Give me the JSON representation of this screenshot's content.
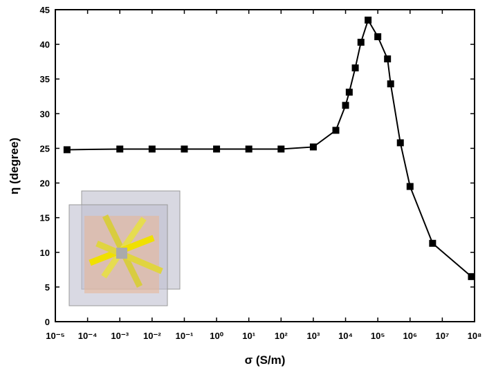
{
  "chart_data": {
    "type": "line",
    "x_label": "σ (S/m)",
    "y_label": "η (degree)",
    "xscale": "log",
    "color": "#000000",
    "x": [
      2.3e-05,
      0.001,
      0.01,
      0.1,
      1,
      10,
      100,
      1000,
      5000,
      10000,
      13000,
      20000,
      30000,
      50000,
      100000,
      200000,
      250000,
      500000,
      1000000,
      5000000,
      80000000
    ],
    "values": [
      24.8,
      24.9,
      24.9,
      24.9,
      24.9,
      24.9,
      24.9,
      25.2,
      27.6,
      31.2,
      33.1,
      36.6,
      40.3,
      43.5,
      41.1,
      37.9,
      34.3,
      25.8,
      19.5,
      11.3,
      6.5
    ],
    "xlim": [
      1e-05,
      100000000
    ],
    "xticks": [
      {
        "value": 1e-05,
        "label": "10⁻⁵"
      },
      {
        "value": 0.0001,
        "label": "10⁻⁴"
      },
      {
        "value": 0.001,
        "label": "10⁻³"
      },
      {
        "value": 0.01,
        "label": "10⁻²"
      },
      {
        "value": 0.1,
        "label": "10⁻¹"
      },
      {
        "value": 1,
        "label": "10⁰"
      },
      {
        "value": 10,
        "label": "10¹"
      },
      {
        "value": 100,
        "label": "10²"
      },
      {
        "value": 1000,
        "label": "10³"
      },
      {
        "value": 10000,
        "label": "10⁴"
      },
      {
        "value": 100000,
        "label": "10⁵"
      },
      {
        "value": 1000000,
        "label": "10⁶"
      },
      {
        "value": 10000000,
        "label": "10⁷"
      },
      {
        "value": 100000000,
        "label": "10⁸"
      }
    ],
    "ylim": [
      0,
      45
    ],
    "yticks": [
      0,
      5,
      10,
      15,
      20,
      25,
      30,
      35,
      40,
      45
    ]
  }
}
